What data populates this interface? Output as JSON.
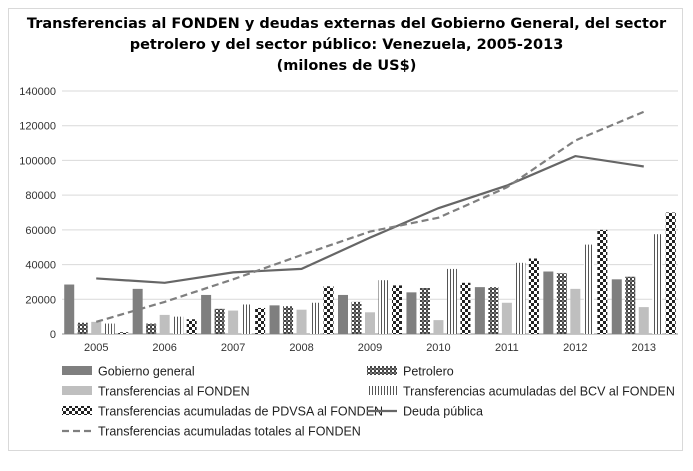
{
  "chart_data": {
    "type": "bar",
    "title_lines": [
      "Transferencias al FONDEN y deudas externas del Gobierno General, del sector",
      "petrolero y del sector público: Venezuela, 2005-2013",
      "(milones de US$)"
    ],
    "categories": [
      "2005",
      "2006",
      "2007",
      "2008",
      "2009",
      "2010",
      "2011",
      "2012",
      "2013"
    ],
    "ylim": [
      0,
      140000
    ],
    "yticks": [
      "0",
      "20000",
      "40000",
      "60000",
      "80000",
      "100000",
      "120000",
      "140000"
    ],
    "grid": true,
    "legend_position": "bottom",
    "bar_series": [
      {
        "name": "Gobierno general",
        "values": [
          28500,
          26000,
          22500,
          16500,
          22500,
          24000,
          27000,
          36000,
          31500
        ],
        "color": "#7f7f7f",
        "pattern": "solid-dark"
      },
      {
        "name": "Petrolero",
        "values": [
          6500,
          6000,
          14500,
          16000,
          18500,
          26500,
          27000,
          35000,
          33000
        ],
        "color": "#595959",
        "pattern": "hatch"
      },
      {
        "name": "Transferencias al FONDEN",
        "values": [
          7000,
          11000,
          13500,
          14000,
          12500,
          8000,
          18000,
          26000,
          15500
        ],
        "color": "#bfbfbf",
        "pattern": "solid-light"
      },
      {
        "name": "Transferencias acumuladas del BCV al FONDEN",
        "values": [
          6000,
          10000,
          17000,
          18000,
          31000,
          37500,
          41000,
          51500,
          57500
        ],
        "color": "#555555",
        "pattern": "vertical-lines"
      },
      {
        "name": "Transferencias acumuladas de PDVSA al FONDEN",
        "values": [
          1000,
          8500,
          15000,
          27500,
          28000,
          29500,
          43500,
          60000,
          70000
        ],
        "color": "#222222",
        "pattern": "checker"
      }
    ],
    "line_series": [
      {
        "name": "Deuda pública",
        "values": [
          32000,
          29500,
          35500,
          37500,
          55500,
          72500,
          85500,
          102500,
          96500
        ],
        "color": "#666666",
        "dash": "solid"
      },
      {
        "name": "Transferencias acumuladas totales al FONDEN",
        "values": [
          7000,
          18500,
          31500,
          45500,
          59000,
          67000,
          84500,
          111500,
          128000
        ],
        "color": "#7f7f7f",
        "dash": "dashed"
      }
    ]
  }
}
